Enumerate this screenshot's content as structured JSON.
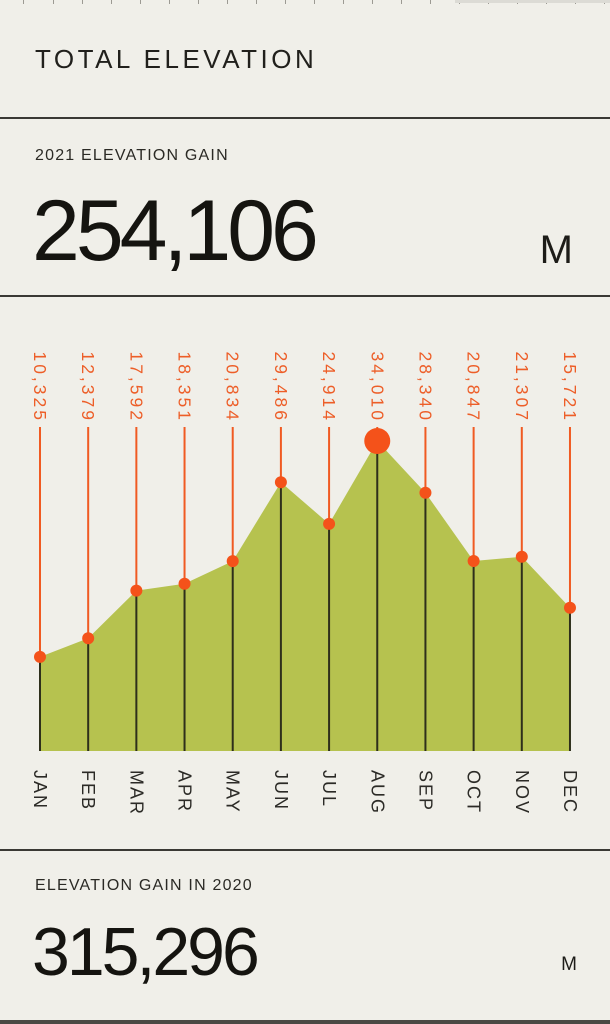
{
  "window": {
    "title": "TOTAL ELEVATION"
  },
  "theme": {
    "background": "#f0efe9",
    "accent_orange": "#f2571c",
    "area_green": "#b6c24f",
    "ink": "#21201c",
    "divider": "#3a3934"
  },
  "summary_2021": {
    "label": "2021 ELEVATION GAIN",
    "value": "254,106",
    "unit": "M"
  },
  "summary_2020": {
    "label": "ELEVATION GAIN IN 2020",
    "value": "315,296",
    "unit": "M"
  },
  "chart_data": {
    "type": "area",
    "title": "2021 monthly elevation gain",
    "categories": [
      "JAN",
      "FEB",
      "MAR",
      "APR",
      "MAY",
      "JUN",
      "JUL",
      "AUG",
      "SEP",
      "OCT",
      "NOV",
      "DEC"
    ],
    "values": [
      10325,
      12379,
      17592,
      18351,
      20834,
      29486,
      24914,
      34010,
      28340,
      20847,
      21307,
      15721
    ],
    "value_labels": [
      "10,325",
      "12,379",
      "17,592",
      "18,351",
      "20,834",
      "29,486",
      "24,914",
      "34,010",
      "28,340",
      "20,847",
      "21,307",
      "15,721"
    ],
    "highlight_index": 7,
    "highlight_month": "AUG",
    "ylim": [
      0,
      34010
    ],
    "grid": false,
    "legend": "none",
    "colors": {
      "area": "#b6c24f",
      "marker": "#f4521a",
      "stem_above": "#f05a22",
      "stem_below": "#2e2f1b",
      "value_label": "#ed5e28",
      "month_label": "#2b2a26"
    }
  }
}
